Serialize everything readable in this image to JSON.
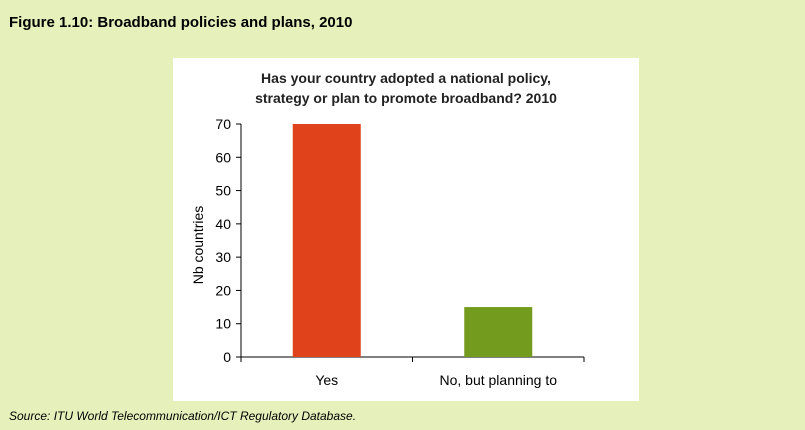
{
  "figure": {
    "title": "Figure 1.10: Broadband policies and plans, 2010",
    "source": "Source: ITU World Telecommunication/ICT Regulatory Database."
  },
  "chart_data": {
    "type": "bar",
    "title_lines": [
      "Has your country adopted a national policy,",
      "strategy or plan to promote broadband? 2010"
    ],
    "categories": [
      "Yes",
      "No, but planning to"
    ],
    "values": [
      70,
      15
    ],
    "colors": [
      "#e0431c",
      "#739b1e"
    ],
    "ylabel": "Nb countries",
    "xlabel": "",
    "ylim": [
      0,
      70
    ],
    "yticks": [
      0,
      10,
      20,
      30,
      40,
      50,
      60,
      70
    ],
    "grid": false,
    "legend": "none"
  }
}
